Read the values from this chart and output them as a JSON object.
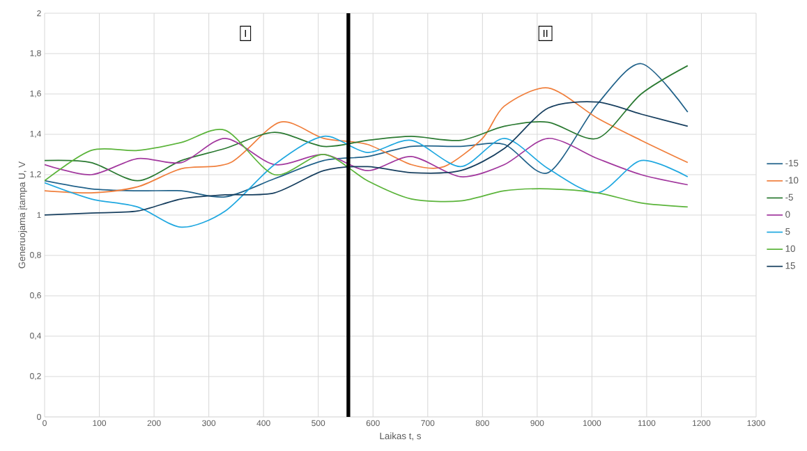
{
  "chart_data": {
    "type": "line",
    "xlabel": "Laikas t, s",
    "ylabel": "Generuojama įtampa U, V",
    "xlim": [
      0,
      1300
    ],
    "ylim": [
      0,
      2
    ],
    "xticks": [
      0,
      100,
      200,
      300,
      400,
      500,
      600,
      700,
      800,
      900,
      1000,
      1100,
      1200,
      1300
    ],
    "yticks": [
      0,
      {
        "value": 0.2,
        "label": "0,2"
      },
      {
        "value": 0.4,
        "label": "0,4"
      },
      {
        "value": 0.6,
        "label": "0,6"
      },
      {
        "value": 0.8,
        "label": "0,8"
      },
      1,
      {
        "value": 1.2,
        "label": "1,2"
      },
      {
        "value": 1.4,
        "label": "1,4"
      },
      {
        "value": 1.6,
        "label": "1,6"
      },
      {
        "value": 1.8,
        "label": "1,8"
      },
      2
    ],
    "grid": true,
    "legend": "right",
    "marker": "none",
    "line_style": "solid",
    "ref_lines": [
      {
        "axis": "x",
        "value": 555,
        "color": "#000000"
      }
    ],
    "annotations": [
      {
        "text": "I",
        "x": 367,
        "y": 1.9
      },
      {
        "text": "II",
        "x": 915,
        "y": 1.9
      }
    ],
    "x": [
      0,
      85,
      170,
      250,
      330,
      420,
      510,
      590,
      670,
      760,
      840,
      920,
      1010,
      1090,
      1175
    ],
    "series": [
      {
        "name": "-15",
        "color": "#21628a",
        "values": [
          1.17,
          1.13,
          1.12,
          1.12,
          1.09,
          1.18,
          1.27,
          1.29,
          1.34,
          1.34,
          1.35,
          1.21,
          1.55,
          1.75,
          1.51
        ]
      },
      {
        "name": "-10",
        "color": "#f07f3c",
        "x": [
          0,
          85,
          170,
          250,
          340,
          430,
          510,
          590,
          670,
          730,
          800,
          840,
          920,
          1010,
          1090,
          1175
        ],
        "values": [
          1.12,
          1.11,
          1.14,
          1.23,
          1.26,
          1.46,
          1.38,
          1.35,
          1.25,
          1.24,
          1.38,
          1.54,
          1.63,
          1.48,
          1.37,
          1.26
        ]
      },
      {
        "name": "-5",
        "color": "#2b7a32",
        "values": [
          1.27,
          1.26,
          1.17,
          1.27,
          1.33,
          1.41,
          1.34,
          1.37,
          1.39,
          1.37,
          1.44,
          1.46,
          1.38,
          1.6,
          1.74
        ]
      },
      {
        "name": "0",
        "color": "#a2389e",
        "values": [
          1.25,
          1.2,
          1.28,
          1.26,
          1.38,
          1.25,
          1.3,
          1.22,
          1.29,
          1.19,
          1.25,
          1.38,
          1.28,
          1.2,
          1.15
        ]
      },
      {
        "name": "5",
        "color": "#20a8e0",
        "values": [
          1.16,
          1.08,
          1.04,
          0.94,
          1.02,
          1.25,
          1.39,
          1.31,
          1.37,
          1.24,
          1.38,
          1.23,
          1.11,
          1.27,
          1.19
        ]
      },
      {
        "name": "10",
        "color": "#5bb43a",
        "values": [
          1.17,
          1.32,
          1.32,
          1.36,
          1.42,
          1.2,
          1.3,
          1.17,
          1.08,
          1.07,
          1.12,
          1.13,
          1.11,
          1.06,
          1.04
        ]
      },
      {
        "name": "15",
        "color": "#173f5f",
        "values": [
          1.0,
          1.01,
          1.02,
          1.08,
          1.1,
          1.11,
          1.22,
          1.24,
          1.21,
          1.22,
          1.33,
          1.53,
          1.56,
          1.5,
          1.44
        ]
      }
    ]
  }
}
